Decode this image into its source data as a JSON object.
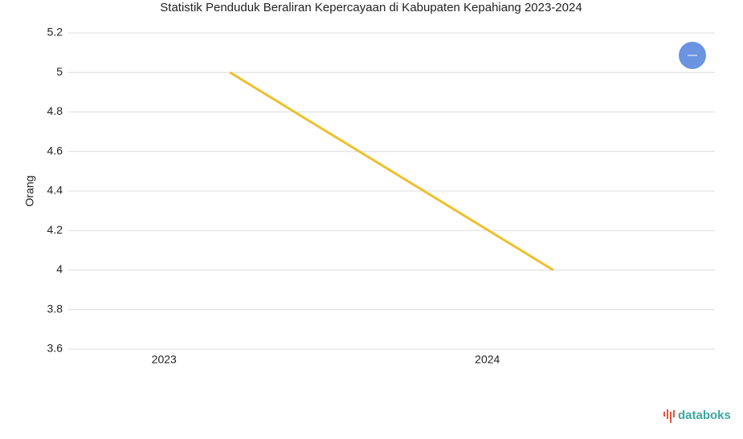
{
  "chart_data": {
    "type": "line",
    "title": "Statistik Penduduk Beraliran Kepercayaan di Kabupaten Kepahiang 2023-2024",
    "y_label": "Orang",
    "categories": [
      "2023",
      "2024"
    ],
    "series": [
      {
        "name": "Orang",
        "color": "#f0bf2c",
        "values": [
          5,
          4
        ]
      }
    ],
    "ylim": [
      3.6,
      5.2
    ],
    "yticks": [
      3.6,
      3.8,
      4,
      4.2,
      4.4,
      4.6,
      4.8,
      5,
      5.2
    ],
    "grid": true,
    "brand": "databoks"
  }
}
